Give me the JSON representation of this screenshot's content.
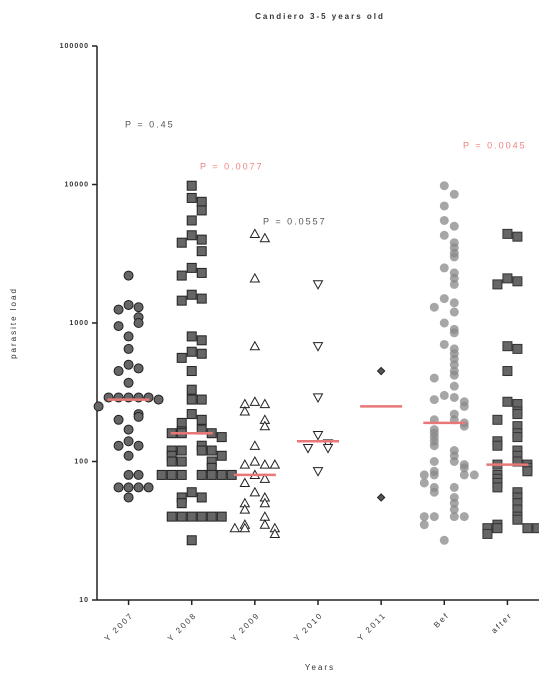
{
  "chart_data": {
    "type": "dotplot",
    "title": "Candiero 3-5 years old",
    "x_label": "Years",
    "y_label": "parasite load",
    "log_y": true,
    "ylim": [
      10,
      100000
    ],
    "yticks": [
      10,
      100,
      1000,
      10000,
      100000
    ],
    "median_color": "#e87878",
    "groups": [
      {
        "category": "Y 2007",
        "marker": "circle",
        "fill": "#666666",
        "stroke": "#222222",
        "median": 280,
        "values": [
          2200,
          1350,
          1300,
          1250,
          1100,
          1000,
          950,
          800,
          650,
          500,
          470,
          450,
          370,
          290,
          290,
          290,
          290,
          290,
          280,
          250,
          220,
          210,
          200,
          170,
          140,
          130,
          130,
          110,
          80,
          80,
          65,
          65,
          65,
          65,
          55
        ]
      },
      {
        "category": "Y 2008",
        "marker": "square",
        "fill": "#666666",
        "stroke": "#222222",
        "median": 160,
        "values": [
          9800,
          8000,
          7500,
          6500,
          5500,
          4300,
          4000,
          3800,
          3300,
          2500,
          2300,
          2200,
          1600,
          1500,
          1450,
          800,
          750,
          620,
          600,
          560,
          450,
          330,
          280,
          280,
          220,
          200,
          190,
          170,
          165,
          160,
          160,
          160,
          150,
          130,
          120,
          120,
          120,
          120,
          110,
          110,
          100,
          100,
          100,
          90,
          80,
          80,
          80,
          80,
          80,
          80,
          80,
          60,
          55,
          55,
          50,
          40,
          40,
          40,
          40,
          40,
          40,
          27
        ]
      },
      {
        "category": "Y 2009",
        "marker": "triangle",
        "fill": "#ffffff",
        "stroke": "#222222",
        "median": 80,
        "values": [
          4400,
          4100,
          2100,
          680,
          270,
          260,
          260,
          230,
          200,
          180,
          130,
          100,
          95,
          95,
          95,
          80,
          75,
          70,
          60,
          55,
          50,
          50,
          45,
          40,
          35,
          35,
          33,
          33,
          33,
          30
        ]
      },
      {
        "category": "Y 2010",
        "marker": "triangle-down",
        "fill": "#ffffff",
        "stroke": "#222222",
        "median": 140,
        "values": [
          1900,
          680,
          290,
          155,
          135,
          125,
          125,
          85
        ]
      },
      {
        "category": "Y 2011",
        "marker": "diamond",
        "fill": "#555555",
        "stroke": "#222222",
        "median": 250,
        "values": [
          450,
          55
        ]
      },
      {
        "category": "Bef",
        "marker": "circle",
        "fill": "#888888",
        "stroke": "none",
        "median": 190,
        "values": [
          9800,
          8500,
          7000,
          5500,
          5000,
          4300,
          3800,
          3500,
          3200,
          3000,
          2500,
          2300,
          2100,
          1900,
          1500,
          1400,
          1300,
          1200,
          1000,
          900,
          850,
          700,
          650,
          600,
          550,
          500,
          450,
          420,
          400,
          350,
          300,
          290,
          280,
          270,
          250,
          220,
          200,
          200,
          190,
          180,
          170,
          160,
          150,
          140,
          130,
          120,
          110,
          100,
          100,
          95,
          90,
          85,
          80,
          80,
          80,
          80,
          70,
          65,
          65,
          60,
          55,
          50,
          45,
          40,
          40,
          40,
          40,
          35,
          27
        ]
      },
      {
        "category": "after",
        "marker": "square",
        "fill": "#666666",
        "stroke": "#333333",
        "median": 95,
        "values": [
          4400,
          4200,
          2100,
          2000,
          1900,
          680,
          650,
          450,
          270,
          260,
          230,
          220,
          200,
          180,
          160,
          150,
          140,
          130,
          120,
          110,
          100,
          95,
          95,
          90,
          85,
          80,
          75,
          70,
          65,
          60,
          55,
          50,
          45,
          40,
          38,
          35,
          33,
          33,
          33,
          33,
          30
        ]
      }
    ],
    "annotations": [
      {
        "text": "P = 0.45",
        "color": "#555555"
      },
      {
        "text": "P = 0.0077",
        "color": "#f08080"
      },
      {
        "text": "P = 0.0557",
        "color": "#555555"
      },
      {
        "text": "P = 0.0045",
        "color": "#f08080"
      }
    ]
  }
}
